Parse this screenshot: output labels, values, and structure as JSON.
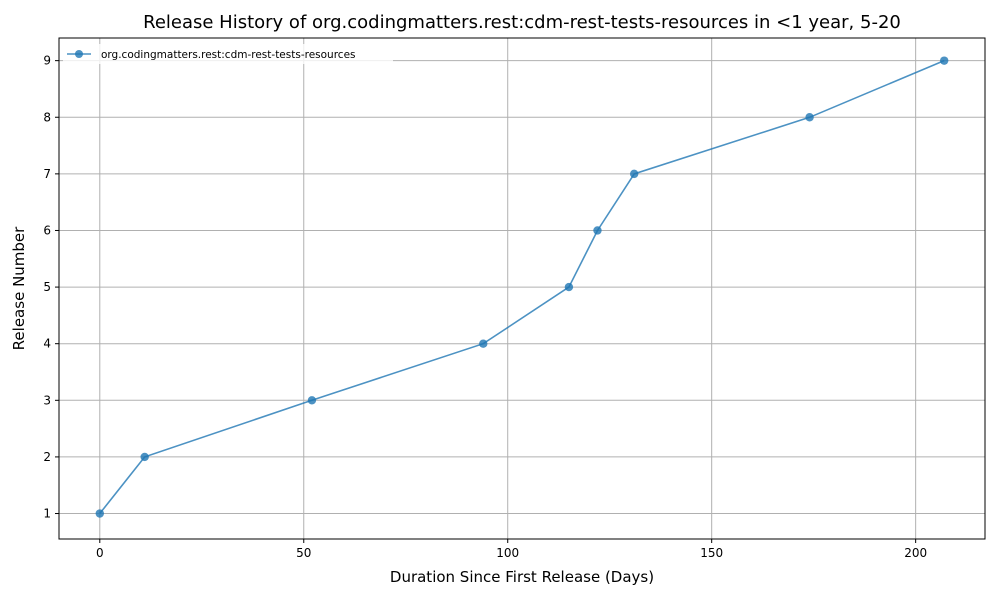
{
  "chart_data": {
    "type": "line",
    "title": "Release History of org.codingmatters.rest:cdm-rest-tests-resources in <1 year, 5-20",
    "xlabel": "Duration Since First Release (Days)",
    "ylabel": "Release Number",
    "xlim": [
      -10,
      217
    ],
    "ylim": [
      0.55,
      9.4
    ],
    "xticks": [
      0,
      50,
      100,
      150,
      200
    ],
    "yticks": [
      1,
      2,
      3,
      4,
      5,
      6,
      7,
      8,
      9
    ],
    "grid": true,
    "legend_position": "top-left",
    "series": [
      {
        "name": "org.codingmatters.rest:cdm-rest-tests-resources",
        "color": "#1f77b4",
        "x": [
          0,
          11,
          52,
          94,
          115,
          122,
          131,
          174,
          207
        ],
        "y": [
          1,
          2,
          3,
          4,
          5,
          6,
          7,
          8,
          9
        ]
      }
    ]
  }
}
